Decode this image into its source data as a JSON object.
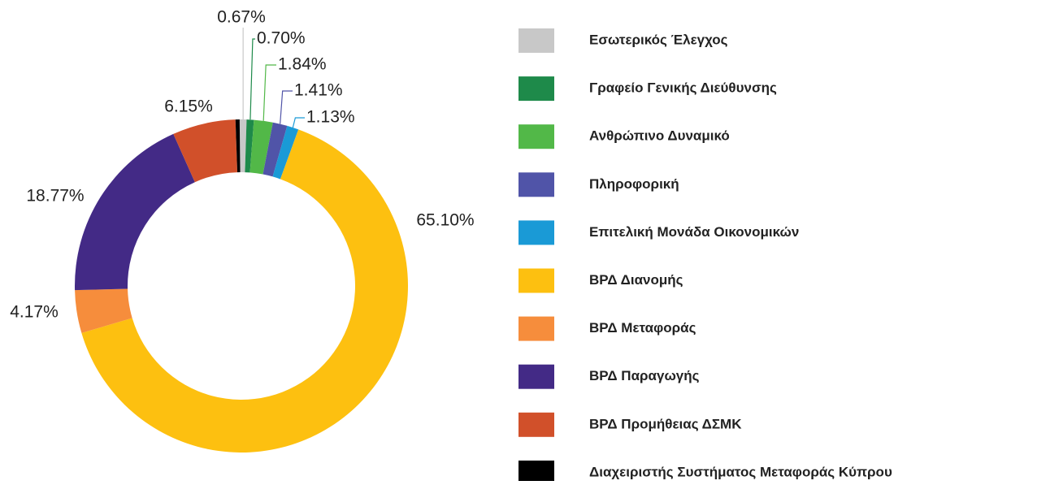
{
  "chart_data": {
    "type": "donut",
    "categories": [
      "Εσωτερικός Έλεγχος",
      "Γραφείο Γενικής Διεύθυνσης",
      "Ανθρώπινο Δυναμικό",
      "Πληροφορική",
      "Επιτελική Μονάδα Οικονομικών",
      "ΒΡΔ Διανομής",
      "ΒΡΔ Μεταφοράς",
      "ΒΡΔ Παραγωγής",
      "ΒΡΔ Προμήθειας ΔΣΜΚ",
      "Διαχειριστής Συστήματος Μεταφοράς Κύπρου"
    ],
    "values": [
      0.67,
      0.7,
      1.84,
      1.41,
      1.13,
      65.1,
      4.17,
      18.77,
      6.15,
      0.4
    ],
    "value_labels": [
      "0.67%",
      "0.70%",
      "1.84%",
      "1.41%",
      "1.13%",
      "65.10%",
      "4.17%",
      "18.77%",
      "6.15%",
      null
    ],
    "colors": [
      "#c8c8c8",
      "#1e8a4a",
      "#52b848",
      "#5054a8",
      "#1a9ad6",
      "#fdc010",
      "#f68d3c",
      "#432a86",
      "#d1502a",
      "#000000"
    ],
    "legend": "right"
  }
}
